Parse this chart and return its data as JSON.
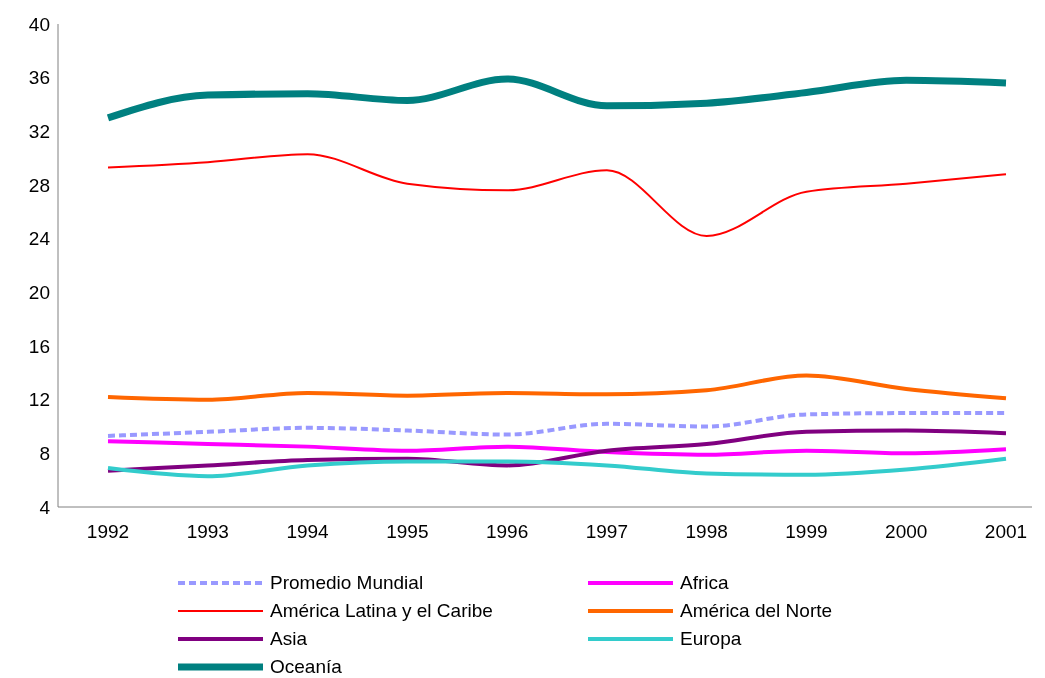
{
  "chart_data": {
    "type": "line",
    "categories": [
      "1992",
      "1993",
      "1994",
      "1995",
      "1996",
      "1997",
      "1998",
      "1999",
      "2000",
      "2001"
    ],
    "ylim": [
      4,
      40
    ],
    "yticks": [
      4,
      8,
      12,
      16,
      20,
      24,
      28,
      32,
      36,
      40
    ],
    "grid": false,
    "legend": "bottom",
    "marker": "none",
    "series": [
      {
        "name": "Promedio Mundial",
        "color": "#9999ff",
        "line_style": "dashed",
        "values": [
          9.3,
          9.6,
          9.9,
          9.7,
          9.4,
          10.2,
          10.0,
          10.9,
          11.0,
          11.0
        ]
      },
      {
        "name": "Africa",
        "color": "#ff00ff",
        "values": [
          8.9,
          8.7,
          8.5,
          8.2,
          8.5,
          8.1,
          7.9,
          8.2,
          8.0,
          8.3
        ]
      },
      {
        "name": "América Latina y el Caribe",
        "color": "#ff0000",
        "values": [
          29.3,
          29.7,
          30.3,
          28.1,
          27.6,
          29.1,
          24.2,
          27.5,
          28.1,
          28.8
        ]
      },
      {
        "name": "América del Norte",
        "color": "#ff6600",
        "values": [
          12.2,
          12.0,
          12.5,
          12.3,
          12.5,
          12.4,
          12.7,
          13.8,
          12.8,
          12.1
        ]
      },
      {
        "name": "Asia",
        "color": "#800080",
        "values": [
          6.7,
          7.1,
          7.5,
          7.6,
          7.1,
          8.2,
          8.7,
          9.6,
          9.7,
          9.5
        ]
      },
      {
        "name": "Europa",
        "color": "#33cccc",
        "values": [
          6.9,
          6.3,
          7.1,
          7.4,
          7.4,
          7.1,
          6.5,
          6.4,
          6.8,
          7.6
        ]
      },
      {
        "name": "Oceanía",
        "color": "#008080",
        "values": [
          33.0,
          34.7,
          34.8,
          34.3,
          35.9,
          33.9,
          34.1,
          34.9,
          35.8,
          35.6
        ]
      }
    ]
  }
}
